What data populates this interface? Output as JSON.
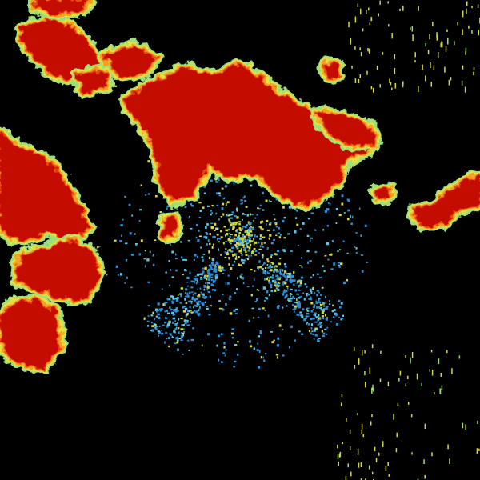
{
  "image": {
    "kind": "weather-radar-reflectivity",
    "background": "#000000",
    "palette": {
      "core": "#c41000",
      "heavy": "#e84a10",
      "moderate": "#f5a020",
      "light": "#e8e040",
      "edge": "#9ce07a",
      "clutter_blue": "#2a8fd8",
      "clutter_cyan": "#5ac8e8",
      "clutter_yellow": "#d8d840"
    }
  }
}
